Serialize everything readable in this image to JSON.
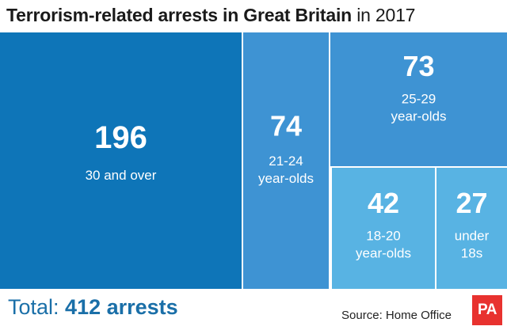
{
  "title": {
    "bold": "Terrorism-related arrests in Great Britain",
    "light": " in 2017"
  },
  "chart_data": {
    "type": "treemap",
    "title": "Terrorism-related arrests in Great Britain in 2017",
    "unit": "arrests",
    "total": 412,
    "series": [
      {
        "name": "30 and over",
        "label_lines": [
          "30 and over"
        ],
        "value": 196,
        "color": "#0e75b8"
      },
      {
        "name": "21-24 year-olds",
        "label_lines": [
          "21-24",
          "year-olds"
        ],
        "value": 74,
        "color": "#3e93d3"
      },
      {
        "name": "25-29 year-olds",
        "label_lines": [
          "25-29",
          "year-olds"
        ],
        "value": 73,
        "color": "#3e93d3"
      },
      {
        "name": "18-20 year-olds",
        "label_lines": [
          "18-20",
          "year-olds"
        ],
        "value": 42,
        "color": "#58b3e3"
      },
      {
        "name": "under 18s",
        "label_lines": [
          "under",
          "18s"
        ],
        "value": 27,
        "color": "#58b3e3"
      }
    ]
  },
  "footer": {
    "total_prefix": "Total: ",
    "total_value": "412 arrests",
    "source": "Source: Home Office",
    "logo_text": "PA"
  },
  "colors": {
    "text_dark": "#1a1a1a",
    "total_text": "#1a6fa8",
    "logo_red": "#e8322f",
    "tile_text": "#ffffff"
  }
}
